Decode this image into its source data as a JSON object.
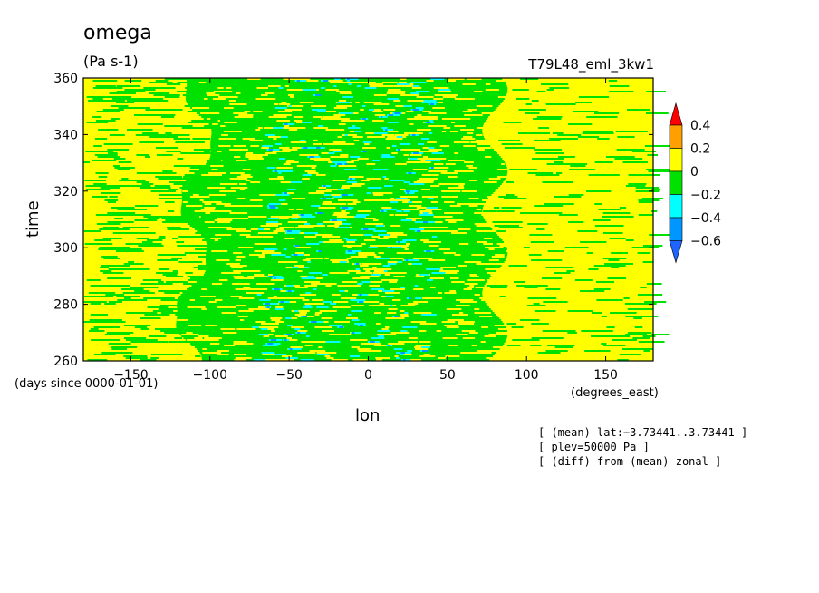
{
  "chart_data": {
    "type": "heatmap",
    "title": "omega",
    "units": "(Pa s-1)",
    "run_name": "T79L48_eml_3kw1",
    "xlabel": "lon",
    "xlabel_units": "(degrees_east)",
    "ylabel": "time",
    "ylabel_units": "(days since 0000-01-01)",
    "xlim": [
      -180,
      180
    ],
    "ylim": [
      260,
      360
    ],
    "x_ticks": [
      -150,
      -100,
      -50,
      0,
      50,
      100,
      150
    ],
    "y_ticks": [
      260,
      280,
      300,
      320,
      340,
      360
    ],
    "x_tick_labels": [
      "−150",
      "−100",
      "−50",
      "0",
      "50",
      "100",
      "150"
    ],
    "y_tick_labels": [
      "260",
      "280",
      "300",
      "320",
      "340",
      "360"
    ],
    "colorbar": {
      "levels": [
        -0.6,
        -0.4,
        -0.2,
        0,
        0.2,
        0.4
      ],
      "labels": [
        "−0.6",
        "−0.4",
        "−0.2",
        "0",
        "0.2",
        "0.4"
      ],
      "bins": [
        {
          "range": "< -0.6",
          "color": "#1e64ff"
        },
        {
          "range": "-0.6 .. -0.4",
          "color": "#0096ff"
        },
        {
          "range": "-0.4 .. -0.2",
          "color": "#00ffff"
        },
        {
          "range": "-0.2 .. 0",
          "color": "#00e100"
        },
        {
          "range": "0 .. 0.2",
          "color": "#ffff00"
        },
        {
          "range": "0.2 .. 0.4",
          "color": "#ffa000"
        },
        {
          "range": "> 0.4",
          "color": "#ff0000"
        }
      ]
    },
    "pattern": {
      "description_fields": "longitude bands of dominant class",
      "bands": [
        {
          "lon_range": [
            -180,
            -110
          ],
          "dominant": "0 .. 0.2"
        },
        {
          "lon_range": [
            -110,
            80
          ],
          "dominant": "-0.2 .. 0"
        },
        {
          "lon_range": [
            80,
            180
          ],
          "dominant": "0 .. 0.2"
        }
      ]
    }
  },
  "notes": [
    "[ (mean) lat:−3.73441..3.73441 ]",
    "[ plev=50000 Pa ]",
    "[ (diff) from (mean) zonal ]"
  ]
}
